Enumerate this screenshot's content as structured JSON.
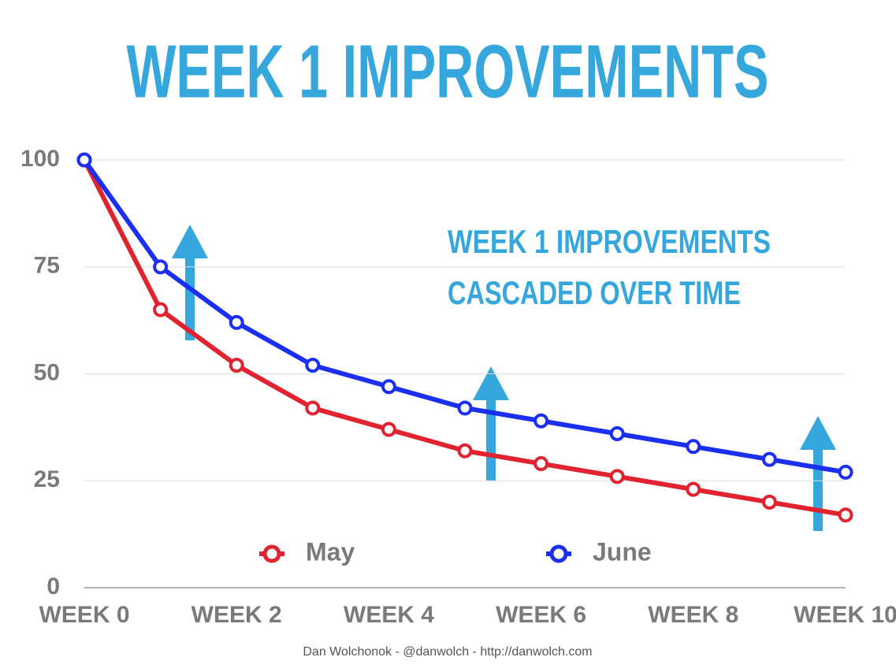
{
  "chart_data": {
    "type": "line",
    "title": "WEEK 1 IMPROVEMENTS",
    "annotation": [
      "WEEK 1 IMPROVEMENTS",
      "CASCADED OVER TIME"
    ],
    "footer": "Dan Wolchonok - @danwolch - http://danwolch.com",
    "categories": [
      "WEEK 0",
      null,
      "WEEK 2",
      null,
      "WEEK 4",
      null,
      "WEEK 6",
      null,
      "WEEK 8",
      null,
      "WEEK 10"
    ],
    "series": [
      {
        "name": "May",
        "color": "#e0232f",
        "values": [
          100,
          65,
          52,
          42,
          37,
          32,
          29,
          26,
          23,
          20,
          17
        ]
      },
      {
        "name": "June",
        "color": "#1a2ff0",
        "values": [
          100,
          75,
          62,
          52,
          47,
          42,
          39,
          36,
          33,
          30,
          27
        ]
      }
    ],
    "ylim": [
      0,
      100
    ],
    "yticks": [
      0,
      25,
      50,
      75,
      100
    ],
    "grid": true,
    "legend": "bottom"
  }
}
